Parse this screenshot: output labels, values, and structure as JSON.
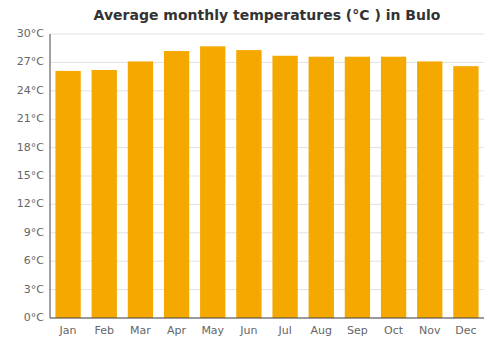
{
  "chart_data": {
    "type": "bar",
    "title": "Average monthly temperatures (°C ) in Bulo",
    "categories": [
      "Jan",
      "Feb",
      "Mar",
      "Apr",
      "May",
      "Jun",
      "Jul",
      "Aug",
      "Sep",
      "Oct",
      "Nov",
      "Dec"
    ],
    "values": [
      26.1,
      26.2,
      27.1,
      28.2,
      28.7,
      28.3,
      27.7,
      27.6,
      27.6,
      27.6,
      27.1,
      26.6
    ],
    "color": "#F5A800",
    "ylim": [
      0,
      30
    ],
    "yticks": [
      {
        "value": 0,
        "label": "0°C"
      },
      {
        "value": 3,
        "label": "3°C"
      },
      {
        "value": 6,
        "label": "6°C"
      },
      {
        "value": 9,
        "label": "9°C"
      },
      {
        "value": 12,
        "label": "12°C"
      },
      {
        "value": 15,
        "label": "15°C"
      },
      {
        "value": 18,
        "label": "18°C"
      },
      {
        "value": 21,
        "label": "21°C"
      },
      {
        "value": 24,
        "label": "24°C"
      },
      {
        "value": 27,
        "label": "27°C"
      },
      {
        "value": 30,
        "label": "30°C"
      }
    ],
    "grid": true
  }
}
